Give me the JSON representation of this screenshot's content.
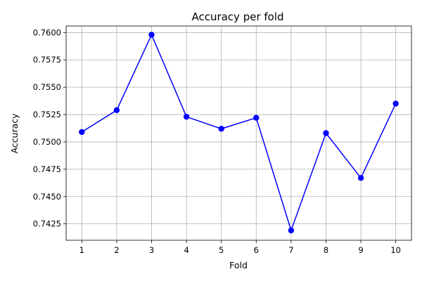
{
  "chart_data": {
    "type": "line",
    "title": "Accuracy per fold",
    "xlabel": "Fold",
    "ylabel": "Accuracy",
    "x": [
      1,
      2,
      3,
      4,
      5,
      6,
      7,
      8,
      9,
      10
    ],
    "x_tick_labels": [
      "1",
      "2",
      "3",
      "4",
      "5",
      "6",
      "7",
      "8",
      "9",
      "10"
    ],
    "y_tick_labels": [
      "0.7425",
      "0.7450",
      "0.7475",
      "0.7500",
      "0.7525",
      "0.7550",
      "0.7575",
      "0.7600"
    ],
    "y_ticks": [
      0.7425,
      0.745,
      0.7475,
      0.75,
      0.7525,
      0.755,
      0.7575,
      0.76
    ],
    "xlim": [
      0.55,
      10.45
    ],
    "ylim": [
      0.741,
      0.7606
    ],
    "grid": true,
    "series": [
      {
        "values": [
          0.7509,
          0.7529,
          0.7598,
          0.7523,
          0.7512,
          0.7522,
          0.7419,
          0.7508,
          0.7467,
          0.7535
        ],
        "color": "#0000ff",
        "marker": "circle"
      }
    ]
  }
}
